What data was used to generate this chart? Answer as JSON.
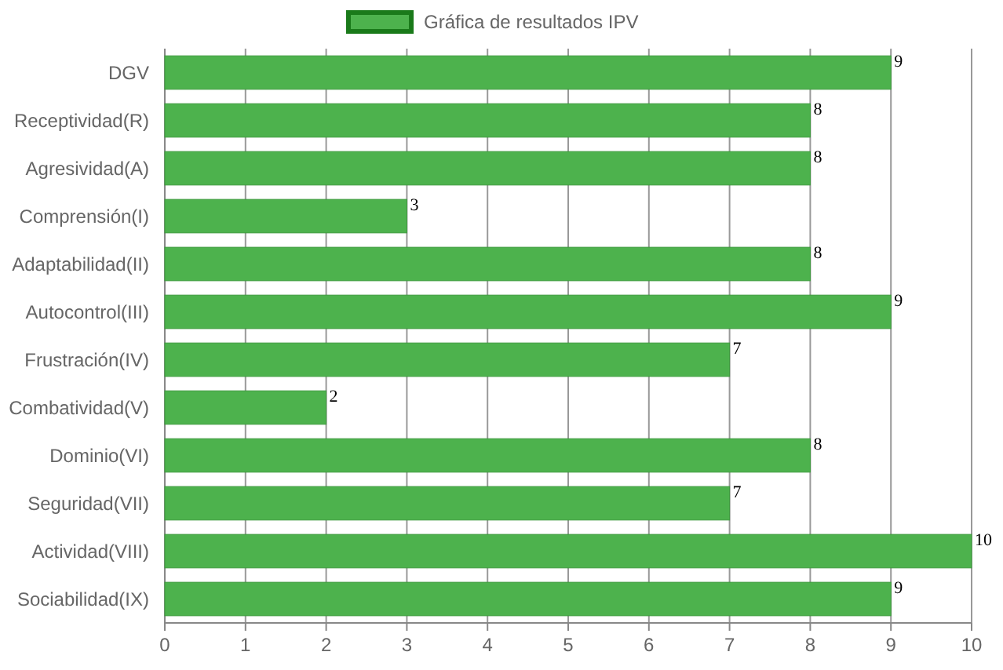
{
  "chart_data": {
    "type": "bar",
    "orientation": "horizontal",
    "categories": [
      "DGV",
      "Receptividad(R)",
      "Agresividad(A)",
      "Comprensión(I)",
      "Adaptabilidad(II)",
      "Autocontrol(III)",
      "Frustración(IV)",
      "Combatividad(V)",
      "Dominio(VI)",
      "Seguridad(VII)",
      "Actividad(VIII)",
      "Sociabilidad(IX)"
    ],
    "series": [
      {
        "name": "Gráfica de resultados IPV",
        "color": "#4db24d",
        "values": [
          9,
          8,
          8,
          3,
          8,
          9,
          7,
          2,
          8,
          7,
          10,
          9
        ]
      }
    ],
    "xlim": [
      0,
      10
    ],
    "xticks": [
      0,
      1,
      2,
      3,
      4,
      5,
      6,
      7,
      8,
      9,
      10
    ],
    "grid": "x",
    "legend": "top",
    "data_labels": true
  }
}
